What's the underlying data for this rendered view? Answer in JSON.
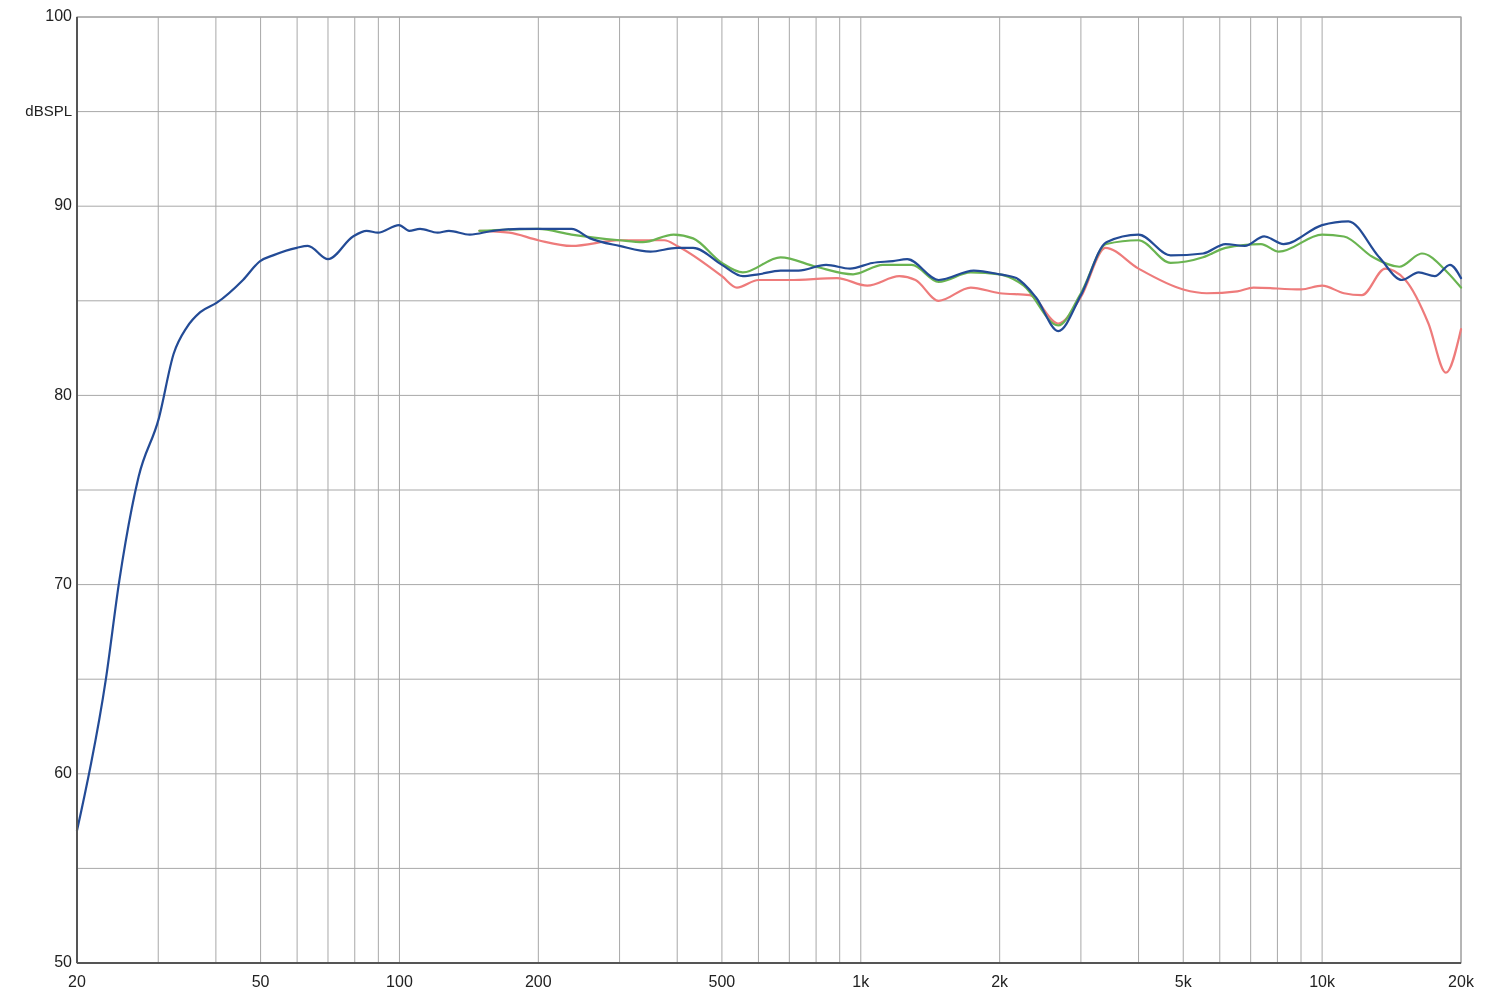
{
  "chart_data": {
    "type": "line",
    "ylabel": "dBSPL",
    "log": "x",
    "grid": true,
    "line_style": "solid",
    "xlim": [
      20,
      20000
    ],
    "ylim": [
      50,
      100
    ],
    "xticks": [
      20,
      {
        "value": 30,
        "label": null
      },
      {
        "value": 40,
        "label": null
      },
      50,
      {
        "value": 60,
        "label": null
      },
      {
        "value": 70,
        "label": null
      },
      {
        "value": 80,
        "label": null
      },
      {
        "value": 90,
        "label": null
      },
      100,
      200,
      {
        "value": 300,
        "label": null
      },
      {
        "value": 400,
        "label": null
      },
      500,
      {
        "value": 600,
        "label": null
      },
      {
        "value": 700,
        "label": null
      },
      {
        "value": 800,
        "label": null
      },
      {
        "value": 900,
        "label": null
      },
      {
        "value": 1000,
        "label": "1k"
      },
      {
        "value": 2000,
        "label": "2k"
      },
      {
        "value": 3000,
        "label": null
      },
      {
        "value": 4000,
        "label": null
      },
      {
        "value": 5000,
        "label": "5k"
      },
      {
        "value": 6000,
        "label": null
      },
      {
        "value": 7000,
        "label": null
      },
      {
        "value": 8000,
        "label": null
      },
      {
        "value": 9000,
        "label": null
      },
      {
        "value": 10000,
        "label": "10k"
      },
      {
        "value": 20000,
        "label": "20k"
      }
    ],
    "yticks": [
      50,
      {
        "value": 55,
        "label": null
      },
      60,
      {
        "value": 65,
        "label": null
      },
      70,
      {
        "value": 75,
        "label": null
      },
      80,
      {
        "value": 85,
        "label": null
      },
      90,
      {
        "value": 95,
        "label": null
      },
      100
    ],
    "series": [
      {
        "color": "#ee7b7b",
        "x": [
          149,
          173,
          200,
          236,
          300,
          375,
          400,
          500,
          539,
          600,
          700,
          888,
          1033,
          1212,
          1314,
          1475,
          1731,
          2000,
          2325,
          2679,
          3000,
          3390,
          4000,
          5000,
          5620,
          6550,
          7100,
          9000,
          10000,
          11150,
          12200,
          13700,
          15150,
          17000,
          18550,
          20000
        ],
        "values": [
          88.7,
          88.6,
          88.2,
          87.9,
          88.2,
          88.2,
          87.9,
          86.3,
          85.7,
          86.1,
          86.1,
          86.2,
          85.8,
          86.3,
          86.1,
          85.0,
          85.7,
          85.4,
          85.3,
          83.8,
          85.2,
          87.8,
          86.7,
          85.6,
          85.4,
          85.5,
          85.7,
          85.6,
          85.8,
          85.4,
          85.3,
          86.7,
          86.1,
          83.8,
          81.2,
          83.5
        ]
      },
      {
        "color": "#6ab451",
        "x": [
          149,
          200,
          236,
          300,
          337,
          393,
          433,
          500,
          555,
          670,
          800,
          962,
          1117,
          1290,
          1475,
          1731,
          2000,
          2255,
          2679,
          3000,
          3406,
          4000,
          4695,
          5520,
          6175,
          7370,
          8060,
          10000,
          11150,
          12900,
          14700,
          16460,
          18700,
          20000
        ],
        "values": [
          88.7,
          88.8,
          88.5,
          88.2,
          88.1,
          88.5,
          88.3,
          87.0,
          86.5,
          87.3,
          86.8,
          86.4,
          86.9,
          86.9,
          86.0,
          86.5,
          86.4,
          85.8,
          83.7,
          85.4,
          88.0,
          88.2,
          87.0,
          87.3,
          87.8,
          88.0,
          87.6,
          88.5,
          88.4,
          87.3,
          86.8,
          87.5,
          86.5,
          85.7
        ]
      },
      {
        "color": "#234b96",
        "x": [
          20,
          23.1,
          24.7,
          27.2,
          30.1,
          32.4,
          34.6,
          37,
          40.2,
          45.8,
          49.9,
          53.2,
          59.9,
          63.3,
          70,
          79.3,
          84.9,
          89.8,
          99.8,
          105,
          110.8,
          121,
          128,
          142,
          159.6,
          182,
          200,
          236,
          259,
          300,
          350,
          400,
          433,
          500,
          555,
          600,
          670,
          733,
          841,
          948,
          1059,
          1174,
          1261,
          1475,
          1757,
          2000,
          2173,
          2394,
          2679,
          3000,
          3406,
          4000,
          4695,
          5520,
          6175,
          6800,
          7490,
          8250,
          10000,
          11400,
          13300,
          14900,
          16190,
          17550,
          18930,
          20000
        ],
        "values": [
          57.0,
          65.0,
          70.2,
          75.7,
          78.8,
          82.2,
          83.6,
          84.4,
          84.9,
          86.1,
          87.1,
          87.4,
          87.8,
          87.9,
          87.2,
          88.4,
          88.7,
          88.6,
          89.0,
          88.7,
          88.8,
          88.6,
          88.7,
          88.5,
          88.7,
          88.8,
          88.8,
          88.8,
          88.3,
          87.9,
          87.6,
          87.8,
          87.8,
          86.9,
          86.3,
          86.4,
          86.6,
          86.6,
          86.9,
          86.7,
          87.0,
          87.1,
          87.2,
          86.1,
          86.6,
          86.4,
          86.2,
          85.2,
          83.4,
          85.3,
          88.1,
          88.5,
          87.4,
          87.5,
          88.0,
          87.9,
          88.4,
          88.0,
          89.0,
          89.2,
          87.3,
          86.1,
          86.5,
          86.3,
          86.9,
          86.2
        ]
      }
    ]
  }
}
